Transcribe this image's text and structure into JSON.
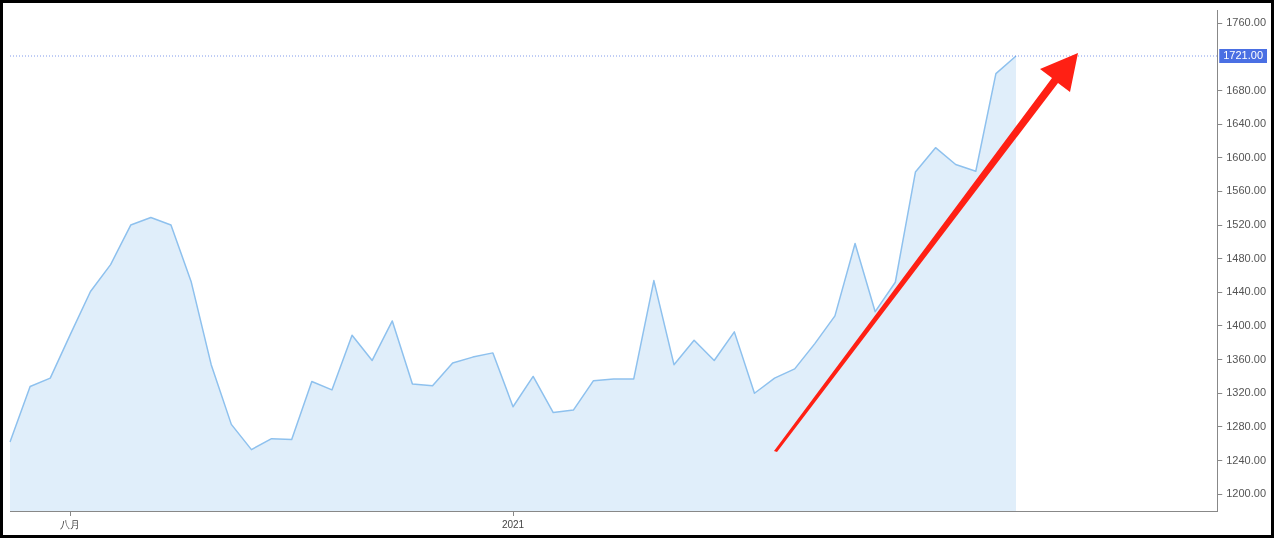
{
  "chart_data": {
    "type": "area",
    "categories": [
      null,
      null,
      null,
      "八月",
      null,
      null,
      null,
      null,
      null,
      null,
      null,
      null,
      null,
      null,
      null,
      null,
      null,
      null,
      null,
      null,
      null,
      null,
      null,
      null,
      null,
      "2021",
      null,
      null,
      null,
      null,
      null,
      null,
      null,
      null,
      null,
      null,
      null,
      null,
      null,
      null,
      null,
      null,
      null,
      null,
      null,
      null,
      null,
      null,
      null,
      null,
      null,
      null,
      null,
      null,
      null,
      null,
      null,
      null,
      null,
      null,
      null
    ],
    "series": [
      {
        "color": "#8ec1ee",
        "values": [
          1262,
          1328,
          1338,
          1390,
          1441,
          1473,
          1520,
          1529,
          1520,
          1453,
          1354,
          1283,
          1253,
          1266,
          1265,
          1334,
          1324,
          1389,
          1359,
          1406,
          1331,
          1329,
          1356,
          1363,
          1368,
          1304,
          1340,
          1297,
          1300,
          1335,
          1337,
          1337,
          1454,
          1354,
          1383,
          1359,
          1393,
          1320,
          1338,
          1349,
          1379,
          1412,
          1498,
          1417,
          1452,
          1583,
          1612,
          1592,
          1584,
          1700,
          1721,
          null,
          null,
          null,
          null,
          null,
          null,
          null,
          null,
          null,
          null
        ]
      }
    ],
    "ylim": [
      1180,
      1775
    ],
    "yticks": [
      {
        "value": 1200,
        "label": "1200.00"
      },
      {
        "value": 1240,
        "label": "1240.00"
      },
      {
        "value": 1280,
        "label": "1280.00"
      },
      {
        "value": 1320,
        "label": "1320.00"
      },
      {
        "value": 1360,
        "label": "1360.00"
      },
      {
        "value": 1400,
        "label": "1400.00"
      },
      {
        "value": 1440,
        "label": "1440.00"
      },
      {
        "value": 1480,
        "label": "1480.00"
      },
      {
        "value": 1520,
        "label": "1520.00"
      },
      {
        "value": 1560,
        "label": "1560.00"
      },
      {
        "value": 1600,
        "label": "1600.00"
      },
      {
        "value": 1640,
        "label": "1640.00"
      },
      {
        "value": 1680,
        "label": "1680.00"
      },
      {
        "value": 1760,
        "label": "1760.00"
      }
    ],
    "ref_lines": [
      {
        "axis": "y",
        "value": 1721,
        "label": "1721.00",
        "color": "#4a6fe3",
        "line_style": "dotted"
      }
    ],
    "grid": false,
    "legend": false
  }
}
